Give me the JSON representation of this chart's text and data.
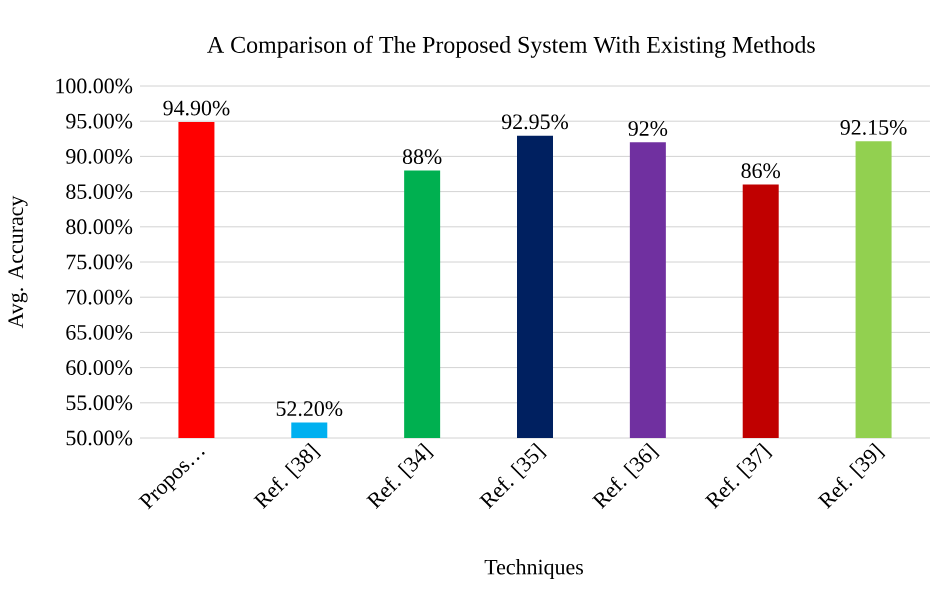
{
  "chart_data": {
    "type": "bar",
    "title": "A Comparison of The Proposed System With Existing Methods",
    "xlabel": "Techniques",
    "ylabel": "Avg. Accuracy",
    "categories": [
      "Propos…",
      "Ref. [38]",
      "Ref. [34]",
      "Ref. [35]",
      "Ref. [36]",
      "Ref. [37]",
      "Ref. [39]"
    ],
    "values": [
      94.9,
      52.2,
      88,
      92.95,
      92,
      86,
      92.15
    ],
    "colors": [
      "#ff0000",
      "#00b0f0",
      "#00b050",
      "#002060",
      "#7030a0",
      "#c00000",
      "#92d050"
    ],
    "value_labels": [
      "94.90%",
      "52.20%",
      "88%",
      "92.95%",
      "92%",
      "86%",
      "92.15%"
    ],
    "ylim": [
      50,
      100
    ],
    "yticks": [
      {
        "value": 50,
        "label": "50.00%"
      },
      {
        "value": 55,
        "label": "55.00%"
      },
      {
        "value": 60,
        "label": "60.00%"
      },
      {
        "value": 65,
        "label": "65.00%"
      },
      {
        "value": 70,
        "label": "70.00%"
      },
      {
        "value": 75,
        "label": "75.00%"
      },
      {
        "value": 80,
        "label": "80.00%"
      },
      {
        "value": 85,
        "label": "85.00%"
      },
      {
        "value": 90,
        "label": "90.00%"
      },
      {
        "value": 95,
        "label": "95.00%"
      },
      {
        "value": 100,
        "label": "100.00%"
      }
    ],
    "grid": "y"
  }
}
